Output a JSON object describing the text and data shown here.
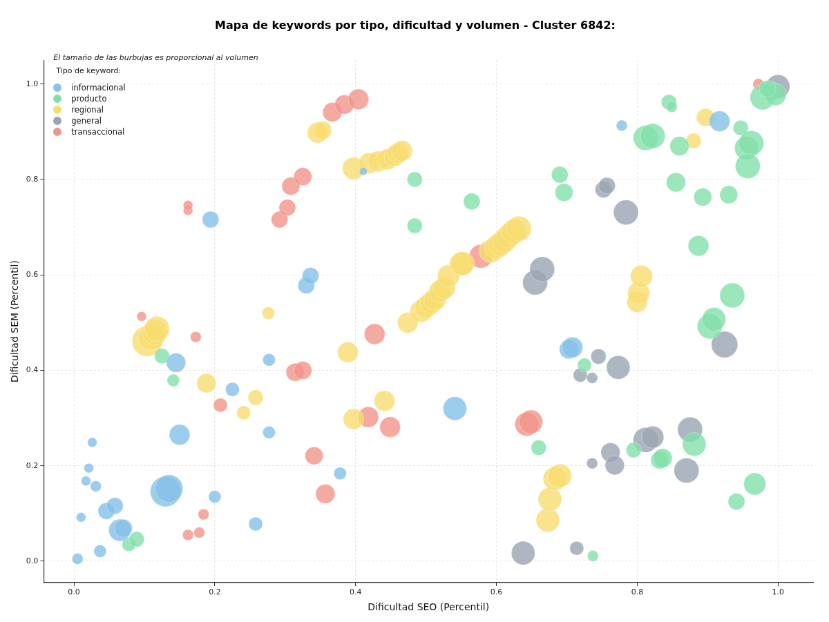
{
  "chart_data": {
    "type": "bubble",
    "title": "Mapa de keywords por tipo, dificultad y volumen - Cluster 6842:",
    "xlabel": "Dificultad SEO (Percentil)",
    "ylabel": "Dificultad SEM (Percentil)",
    "legend_title": "Tipo de keyword:",
    "annotations": [
      "El tamaño de las burbujas es proporcional al volumen"
    ],
    "legend": "top left",
    "grid": true,
    "xlim": [
      -0.043,
      1.05
    ],
    "ylim": [
      -0.045,
      1.05
    ],
    "xticks": [
      {
        "value": 0,
        "label": "0.0"
      },
      0.2,
      0.4,
      0.6,
      0.8,
      {
        "value": 1,
        "label": "1.0"
      }
    ],
    "yticks": [
      {
        "value": 0,
        "label": "0.0"
      },
      0.2,
      0.4,
      0.6,
      0.8,
      {
        "value": 1,
        "label": "1.0"
      }
    ],
    "series": [
      {
        "name": "informacional",
        "color": "#85c1e9",
        "x": [
          0.005,
          0.01,
          0.017,
          0.021,
          0.026,
          0.031,
          0.037,
          0.046,
          0.058,
          0.065,
          0.07,
          0.13,
          0.135,
          0.145,
          0.15,
          0.194,
          0.2,
          0.225,
          0.258,
          0.277,
          0.277,
          0.33,
          0.336,
          0.378,
          0.411,
          0.541,
          0.703,
          0.708,
          0.778,
          0.917
        ],
        "values": [
          0.005,
          0.092,
          0.168,
          0.195,
          0.249,
          0.157,
          0.021,
          0.105,
          0.116,
          0.065,
          0.069,
          0.146,
          0.152,
          0.416,
          0.265,
          0.716,
          0.135,
          0.36,
          0.078,
          0.422,
          0.27,
          0.578,
          0.598,
          0.184,
          0.817,
          0.32,
          0.444,
          0.448,
          0.913,
          0.922
        ],
        "sizes": [
          0.13,
          0.1,
          0.1,
          0.1,
          0.1,
          0.13,
          0.17,
          0.3,
          0.3,
          0.53,
          0.35,
          1,
          0.83,
          0.4,
          0.46,
          0.3,
          0.17,
          0.21,
          0.21,
          0.17,
          0.17,
          0.3,
          0.3,
          0.17,
          0.07,
          0.6,
          0.4,
          0.46,
          0.13,
          0.46
        ]
      },
      {
        "name": "producto",
        "color": "#82e0aa",
        "x": [
          0.078,
          0.089,
          0.125,
          0.141,
          0.484,
          0.484,
          0.565,
          0.66,
          0.69,
          0.696,
          0.725,
          0.737,
          0.795,
          0.812,
          0.822,
          0.832,
          0.836,
          0.845,
          0.849,
          0.855,
          0.86,
          0.881,
          0.893,
          0.887,
          0.903,
          0.909,
          0.93,
          0.935,
          0.941,
          0.947,
          0.955,
          0.962,
          0.957,
          0.967,
          0.978,
          0.99,
          0.996,
          0.985
        ],
        "values": [
          0.035,
          0.046,
          0.43,
          0.379,
          0.8,
          0.703,
          0.754,
          0.238,
          0.81,
          0.773,
          0.411,
          0.011,
          0.233,
          0.887,
          0.891,
          0.212,
          0.216,
          0.962,
          0.952,
          0.794,
          0.87,
          0.245,
          0.763,
          0.661,
          0.492,
          0.507,
          0.768,
          0.557,
          0.125,
          0.908,
          0.866,
          0.876,
          0.828,
          0.162,
          0.972,
          0.985,
          0.978,
          0.99
        ],
        "sizes": [
          0.21,
          0.25,
          0.25,
          0.17,
          0.25,
          0.25,
          0.3,
          0.25,
          0.3,
          0.35,
          0.21,
          0.13,
          0.25,
          0.67,
          0.67,
          0.35,
          0.4,
          0.25,
          0.13,
          0.4,
          0.4,
          0.6,
          0.35,
          0.46,
          0.67,
          0.6,
          0.35,
          0.67,
          0.3,
          0.25,
          0.6,
          0.67,
          0.67,
          0.53,
          0.67,
          0.4,
          0.53,
          0.3
        ]
      },
      {
        "name": "regional",
        "color": "#f7dc6f",
        "x": [
          0.104,
          0.11,
          0.115,
          0.118,
          0.188,
          0.241,
          0.258,
          0.276,
          0.346,
          0.353,
          0.389,
          0.397,
          0.397,
          0.419,
          0.432,
          0.441,
          0.445,
          0.455,
          0.46,
          0.466,
          0.474,
          0.493,
          0.5,
          0.507,
          0.513,
          0.52,
          0.526,
          0.532,
          0.55,
          0.552,
          0.592,
          0.6,
          0.605,
          0.611,
          0.617,
          0.625,
          0.632,
          0.673,
          0.676,
          0.683,
          0.69,
          0.8,
          0.802,
          0.806,
          0.88,
          0.897
        ],
        "values": [
          0.461,
          0.47,
          0.48,
          0.487,
          0.373,
          0.311,
          0.343,
          0.52,
          0.898,
          0.903,
          0.438,
          0.298,
          0.823,
          0.834,
          0.838,
          0.336,
          0.842,
          0.849,
          0.855,
          0.86,
          0.5,
          0.524,
          0.533,
          0.541,
          0.549,
          0.566,
          0.573,
          0.598,
          0.623,
          0.624,
          0.65,
          0.658,
          0.664,
          0.671,
          0.681,
          0.691,
          0.697,
          0.086,
          0.13,
          0.173,
          0.179,
          0.543,
          0.562,
          0.597,
          0.881,
          0.93
        ],
        "sizes": [
          1,
          0.75,
          0.67,
          0.67,
          0.4,
          0.21,
          0.25,
          0.17,
          0.46,
          0.35,
          0.46,
          0.46,
          0.53,
          0.46,
          0.46,
          0.46,
          0.46,
          0.46,
          0.46,
          0.46,
          0.46,
          0.53,
          0.53,
          0.53,
          0.53,
          0.53,
          0.53,
          0.53,
          0.6,
          0.6,
          0.6,
          0.6,
          0.6,
          0.6,
          0.6,
          0.67,
          0.67,
          0.6,
          0.6,
          0.6,
          0.6,
          0.46,
          0.53,
          0.53,
          0.25,
          0.35
        ]
      },
      {
        "name": "general",
        "color": "#9aa5b1",
        "x": [
          0.638,
          0.655,
          0.665,
          0.714,
          0.719,
          0.736,
          0.736,
          0.745,
          0.752,
          0.757,
          0.762,
          0.768,
          0.773,
          0.784,
          0.812,
          0.822,
          0.87,
          0.875,
          0.924,
          1.0
        ],
        "values": [
          0.017,
          0.584,
          0.612,
          0.027,
          0.39,
          0.384,
          0.205,
          0.429,
          0.779,
          0.787,
          0.228,
          0.201,
          0.406,
          0.731,
          0.254,
          0.26,
          0.19,
          0.276,
          0.454,
          0.995
        ],
        "sizes": [
          0.6,
          0.67,
          0.67,
          0.21,
          0.21,
          0.13,
          0.13,
          0.25,
          0.3,
          0.3,
          0.4,
          0.4,
          0.6,
          0.67,
          0.67,
          0.53,
          0.67,
          0.67,
          0.75,
          0.6
        ]
      },
      {
        "name": "transaccional",
        "color": "#f1948a",
        "x": [
          0.096,
          0.162,
          0.162,
          0.162,
          0.173,
          0.178,
          0.184,
          0.208,
          0.292,
          0.303,
          0.308,
          0.314,
          0.325,
          0.325,
          0.341,
          0.357,
          0.367,
          0.384,
          0.404,
          0.418,
          0.427,
          0.449,
          0.578,
          0.643,
          0.649,
          0.972
        ],
        "values": [
          0.513,
          0.735,
          0.746,
          0.055,
          0.47,
          0.06,
          0.098,
          0.327,
          0.716,
          0.741,
          0.786,
          0.396,
          0.4,
          0.806,
          0.221,
          0.141,
          0.941,
          0.957,
          0.968,
          0.302,
          0.476,
          0.281,
          0.639,
          0.287,
          0.292,
          1.0
        ],
        "sizes": [
          0.1,
          0.1,
          0.1,
          0.13,
          0.13,
          0.13,
          0.13,
          0.21,
          0.3,
          0.3,
          0.35,
          0.35,
          0.35,
          0.35,
          0.35,
          0.4,
          0.4,
          0.4,
          0.46,
          0.46,
          0.46,
          0.46,
          0.6,
          0.6,
          0.6,
          0.13
        ]
      }
    ]
  }
}
